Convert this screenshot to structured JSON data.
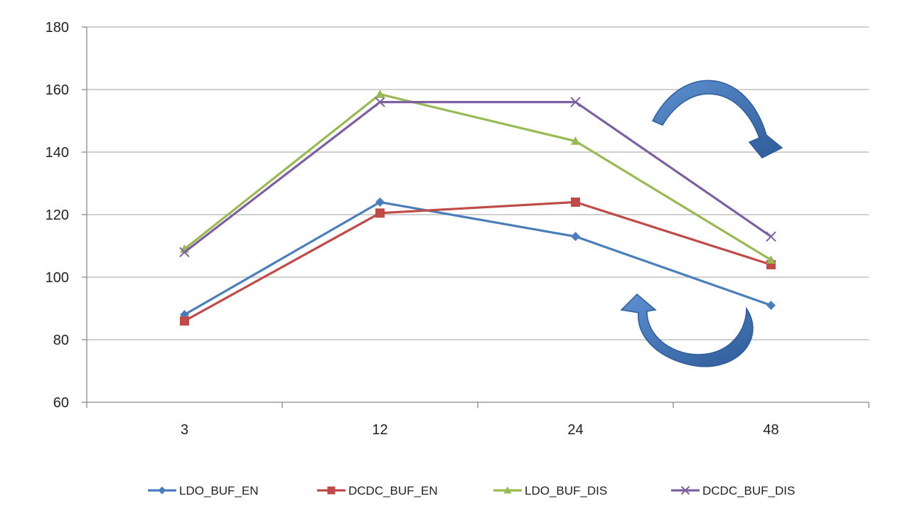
{
  "chart_data": {
    "type": "line",
    "title": "",
    "xlabel": "",
    "ylabel": "",
    "categories": [
      "3",
      "12",
      "24",
      "48"
    ],
    "ylim": [
      60,
      180
    ],
    "yticks": [
      60,
      80,
      100,
      120,
      140,
      160,
      180
    ],
    "grid": true,
    "legend_position": "bottom",
    "series": [
      {
        "name": "LDO_BUF_EN",
        "color": "#4a7ebb",
        "marker": "diamond",
        "values": [
          88,
          124,
          113,
          91
        ]
      },
      {
        "name": "DCDC_BUF_EN",
        "color": "#be4b48",
        "marker": "square",
        "values": [
          86,
          120.5,
          124,
          104
        ]
      },
      {
        "name": "LDO_BUF_DIS",
        "color": "#98b954",
        "marker": "triangle",
        "values": [
          109,
          158.5,
          143.5,
          105.5
        ]
      },
      {
        "name": "DCDC_BUF_DIS",
        "color": "#7d60a0",
        "marker": "x",
        "values": [
          108,
          156,
          156,
          113
        ]
      }
    ],
    "annotations": [
      {
        "kind": "curved-arrow",
        "direction": "clockwise-down",
        "color": "#3e6fb0"
      },
      {
        "kind": "curved-arrow",
        "direction": "counterclockwise-up",
        "color": "#3e6fb0"
      }
    ]
  }
}
